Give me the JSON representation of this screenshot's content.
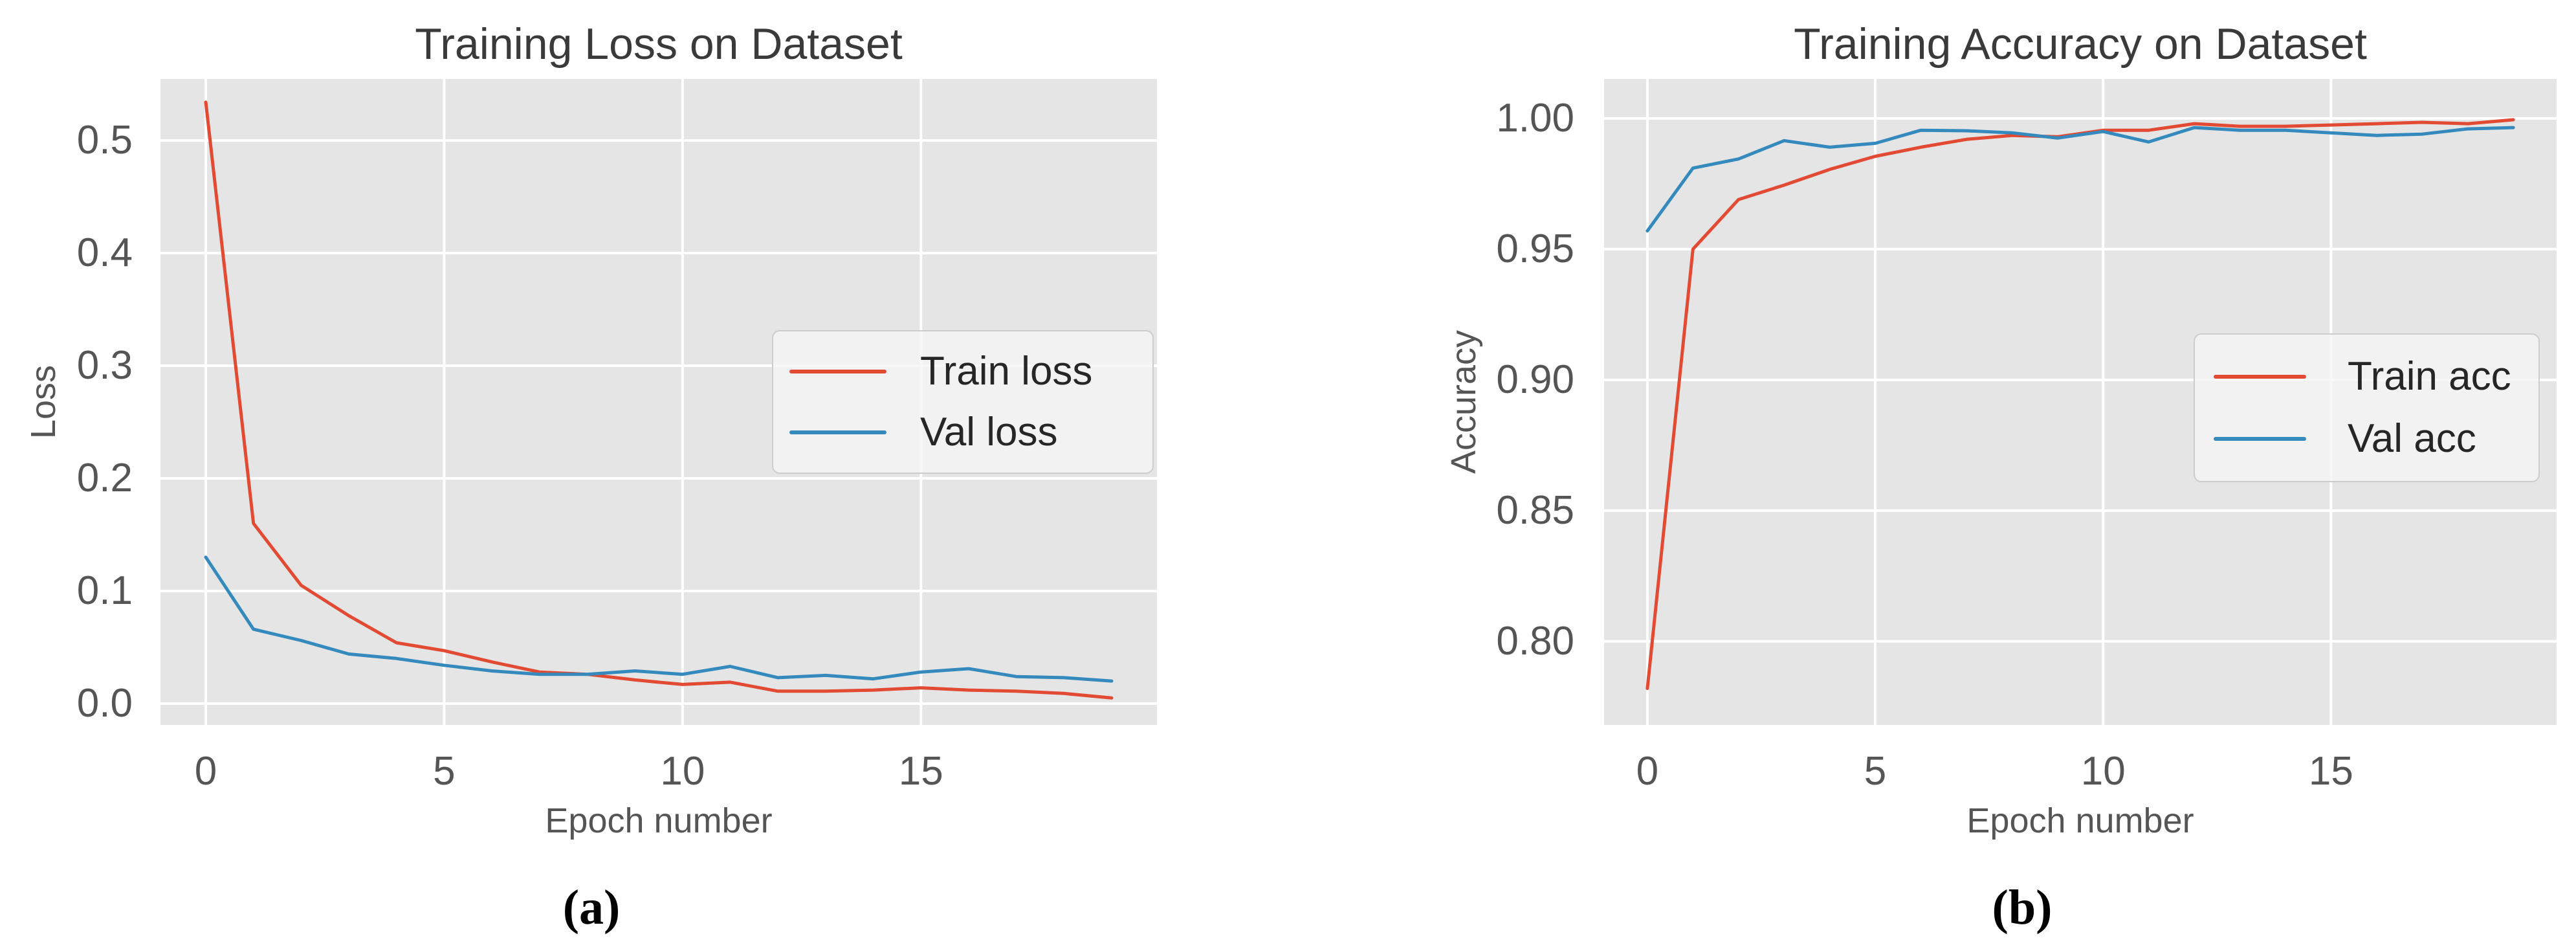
{
  "figure": {
    "background": "#ffffff",
    "plot_background": "#e5e5e5",
    "grid_color": "#ffffff",
    "tick_color": "#555555",
    "title_color": "#3a3a3a",
    "legend_text_color": "#262626"
  },
  "chart_data": [
    {
      "id": "loss",
      "type": "line",
      "title": "Training Loss on Dataset",
      "xlabel": "Epoch number",
      "ylabel": "Loss",
      "caption": "(a)",
      "grid": true,
      "legend_position": "center right",
      "x": [
        0,
        1,
        2,
        3,
        4,
        5,
        6,
        7,
        8,
        9,
        10,
        11,
        12,
        13,
        14,
        15,
        16,
        17,
        18,
        19
      ],
      "series": [
        {
          "name": "Train loss",
          "color": "#e24a33",
          "values": [
            0.534,
            0.16,
            0.105,
            0.078,
            0.054,
            0.047,
            0.037,
            0.028,
            0.026,
            0.021,
            0.017,
            0.019,
            0.011,
            0.011,
            0.012,
            0.014,
            0.012,
            0.011,
            0.009,
            0.005
          ]
        },
        {
          "name": "Val loss",
          "color": "#348abd",
          "values": [
            0.13,
            0.066,
            0.056,
            0.044,
            0.04,
            0.034,
            0.029,
            0.026,
            0.026,
            0.029,
            0.026,
            0.033,
            0.023,
            0.025,
            0.022,
            0.028,
            0.031,
            0.024,
            0.023,
            0.02
          ]
        }
      ],
      "xlim": [
        -0.95,
        19.95
      ],
      "ylim": [
        -0.019,
        0.5546
      ],
      "xticks": [
        0,
        5,
        10,
        15
      ],
      "xtick_labels": [
        "0",
        "5",
        "10",
        "15"
      ],
      "yticks": [
        0.0,
        0.1,
        0.2,
        0.3,
        0.4,
        0.5
      ],
      "ytick_labels": [
        "0.0",
        "0.1",
        "0.2",
        "0.3",
        "0.4",
        "0.5"
      ]
    },
    {
      "id": "accuracy",
      "type": "line",
      "title": "Training Accuracy on Dataset",
      "xlabel": "Epoch number",
      "ylabel": "Accuracy",
      "caption": "(b)",
      "grid": true,
      "legend_position": "lower right",
      "x": [
        0,
        1,
        2,
        3,
        4,
        5,
        6,
        7,
        8,
        9,
        10,
        11,
        12,
        13,
        14,
        15,
        16,
        17,
        18,
        19
      ],
      "series": [
        {
          "name": "Train acc",
          "color": "#e24a33",
          "values": [
            0.782,
            0.95,
            0.969,
            0.9745,
            0.9805,
            0.9855,
            0.989,
            0.992,
            0.9935,
            0.993,
            0.9955,
            0.9955,
            0.998,
            0.997,
            0.997,
            0.9975,
            0.998,
            0.9985,
            0.998,
            0.9995
          ]
        },
        {
          "name": "Val acc",
          "color": "#348abd",
          "values": [
            0.957,
            0.981,
            0.9845,
            0.9915,
            0.989,
            0.9905,
            0.9955,
            0.9953,
            0.9945,
            0.9925,
            0.995,
            0.991,
            0.9965,
            0.9955,
            0.9955,
            0.9945,
            0.9935,
            0.994,
            0.996,
            0.9965
          ]
        }
      ],
      "xlim": [
        -0.95,
        19.95
      ],
      "ylim": [
        0.768,
        1.0151
      ],
      "xticks": [
        0,
        5,
        10,
        15
      ],
      "xtick_labels": [
        "0",
        "5",
        "10",
        "15"
      ],
      "yticks": [
        0.8,
        0.85,
        0.9,
        0.95,
        1.0
      ],
      "ytick_labels": [
        "0.80",
        "0.85",
        "0.90",
        "0.95",
        "1.00"
      ]
    }
  ]
}
